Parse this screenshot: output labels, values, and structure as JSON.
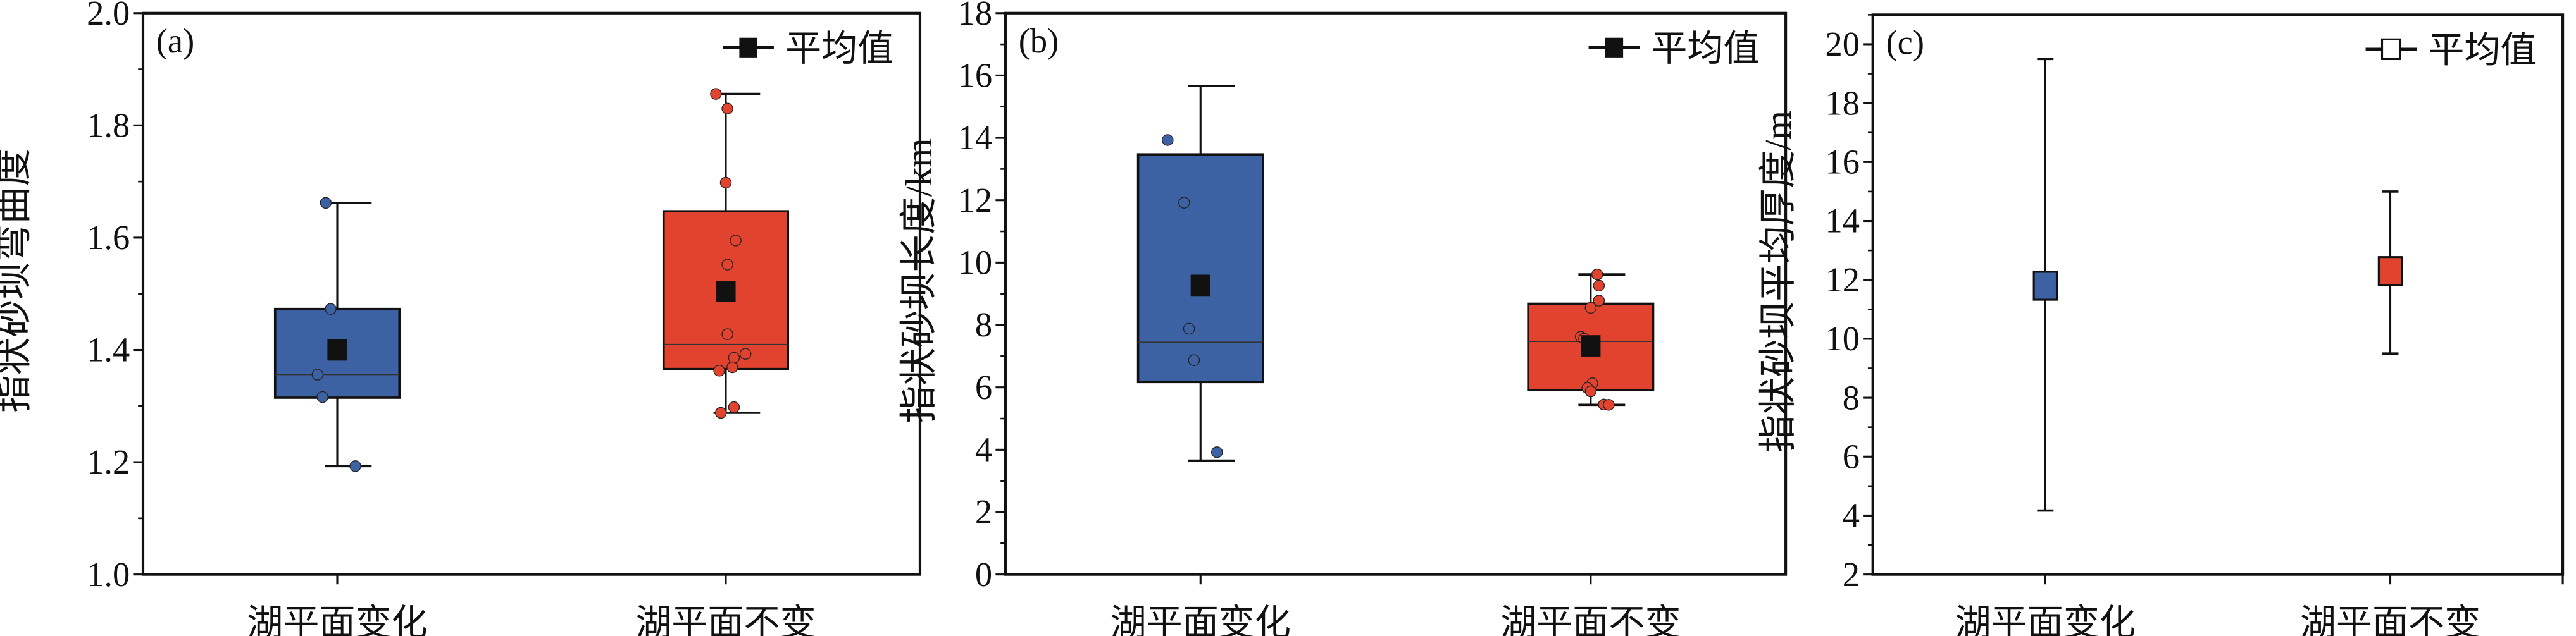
{
  "colors": {
    "change": "#3d62a4",
    "unchanged": "#e1432f",
    "mean": "#111111",
    "axis": "#111111"
  },
  "legend_label": "平均值",
  "categories": [
    "湖平面变化",
    "湖平面不变"
  ],
  "chart_data": [
    {
      "type": "box",
      "panel_label": "(a)",
      "ylabel": "指状砂坝弯曲度",
      "ylim": [
        1.0,
        2.0
      ],
      "yticks": [
        "1.0",
        "1.2",
        "1.4",
        "1.6",
        "1.8",
        "2.0"
      ],
      "ytick_values": [
        1.0,
        1.2,
        1.4,
        1.6,
        1.8,
        2.0
      ],
      "minor_step": 0.1,
      "legend_marker": "filled-square",
      "series": [
        {
          "category": "湖平面变化",
          "q1": 1.315,
          "median": 1.356,
          "q3": 1.473,
          "mean": 1.4,
          "whisker_low": 1.193,
          "whisker_high": 1.662,
          "points": [
            1.662,
            1.473,
            1.356,
            1.316,
            1.193
          ]
        },
        {
          "category": "湖平面不变",
          "q1": 1.366,
          "median": 1.41,
          "q3": 1.647,
          "mean": 1.504,
          "whisker_low": 1.288,
          "whisker_high": 1.856,
          "points": [
            1.856,
            1.83,
            1.698,
            1.595,
            1.552,
            1.428,
            1.393,
            1.386,
            1.369,
            1.363,
            1.298,
            1.288
          ]
        }
      ]
    },
    {
      "type": "box",
      "panel_label": "(b)",
      "ylabel": "指状砂坝长度/km",
      "ylim": [
        0,
        18
      ],
      "yticks": [
        "0",
        "2",
        "4",
        "6",
        "8",
        "10",
        "12",
        "14",
        "16",
        "18"
      ],
      "ytick_values": [
        0,
        2,
        4,
        6,
        8,
        10,
        12,
        14,
        16,
        18
      ],
      "minor_step": 1,
      "legend_marker": "filled-square",
      "series": [
        {
          "category": "湖平面变化",
          "q1": 6.17,
          "median": 7.45,
          "q3": 13.47,
          "mean": 9.27,
          "whisker_low": 3.65,
          "whisker_high": 15.66,
          "points": [
            13.93,
            11.92,
            7.88,
            6.87,
            3.92
          ]
        },
        {
          "category": "湖平面不变",
          "q1": 5.91,
          "median": 7.47,
          "q3": 8.68,
          "mean": 7.33,
          "whisker_low": 5.44,
          "whisker_high": 9.62,
          "points": [
            9.62,
            9.26,
            8.78,
            8.55,
            7.62,
            7.56,
            7.39,
            6.13,
            5.98,
            5.87,
            5.45,
            5.44
          ]
        }
      ]
    },
    {
      "type": "errorbar",
      "panel_label": "(c)",
      "ylabel": "指状砂坝平均厚度/m",
      "ylim": [
        2,
        21
      ],
      "yticks": [
        "2",
        "4",
        "6",
        "8",
        "10",
        "12",
        "14",
        "16",
        "18",
        "20"
      ],
      "ytick_values": [
        2,
        4,
        6,
        8,
        10,
        12,
        14,
        16,
        18,
        20
      ],
      "minor_step": 1,
      "legend_marker": "open-square",
      "series": [
        {
          "category": "湖平面变化",
          "mean": 11.8,
          "low": 4.17,
          "high": 19.5
        },
        {
          "category": "湖平面不变",
          "mean": 12.3,
          "low": 9.5,
          "high": 15.0
        }
      ]
    }
  ]
}
